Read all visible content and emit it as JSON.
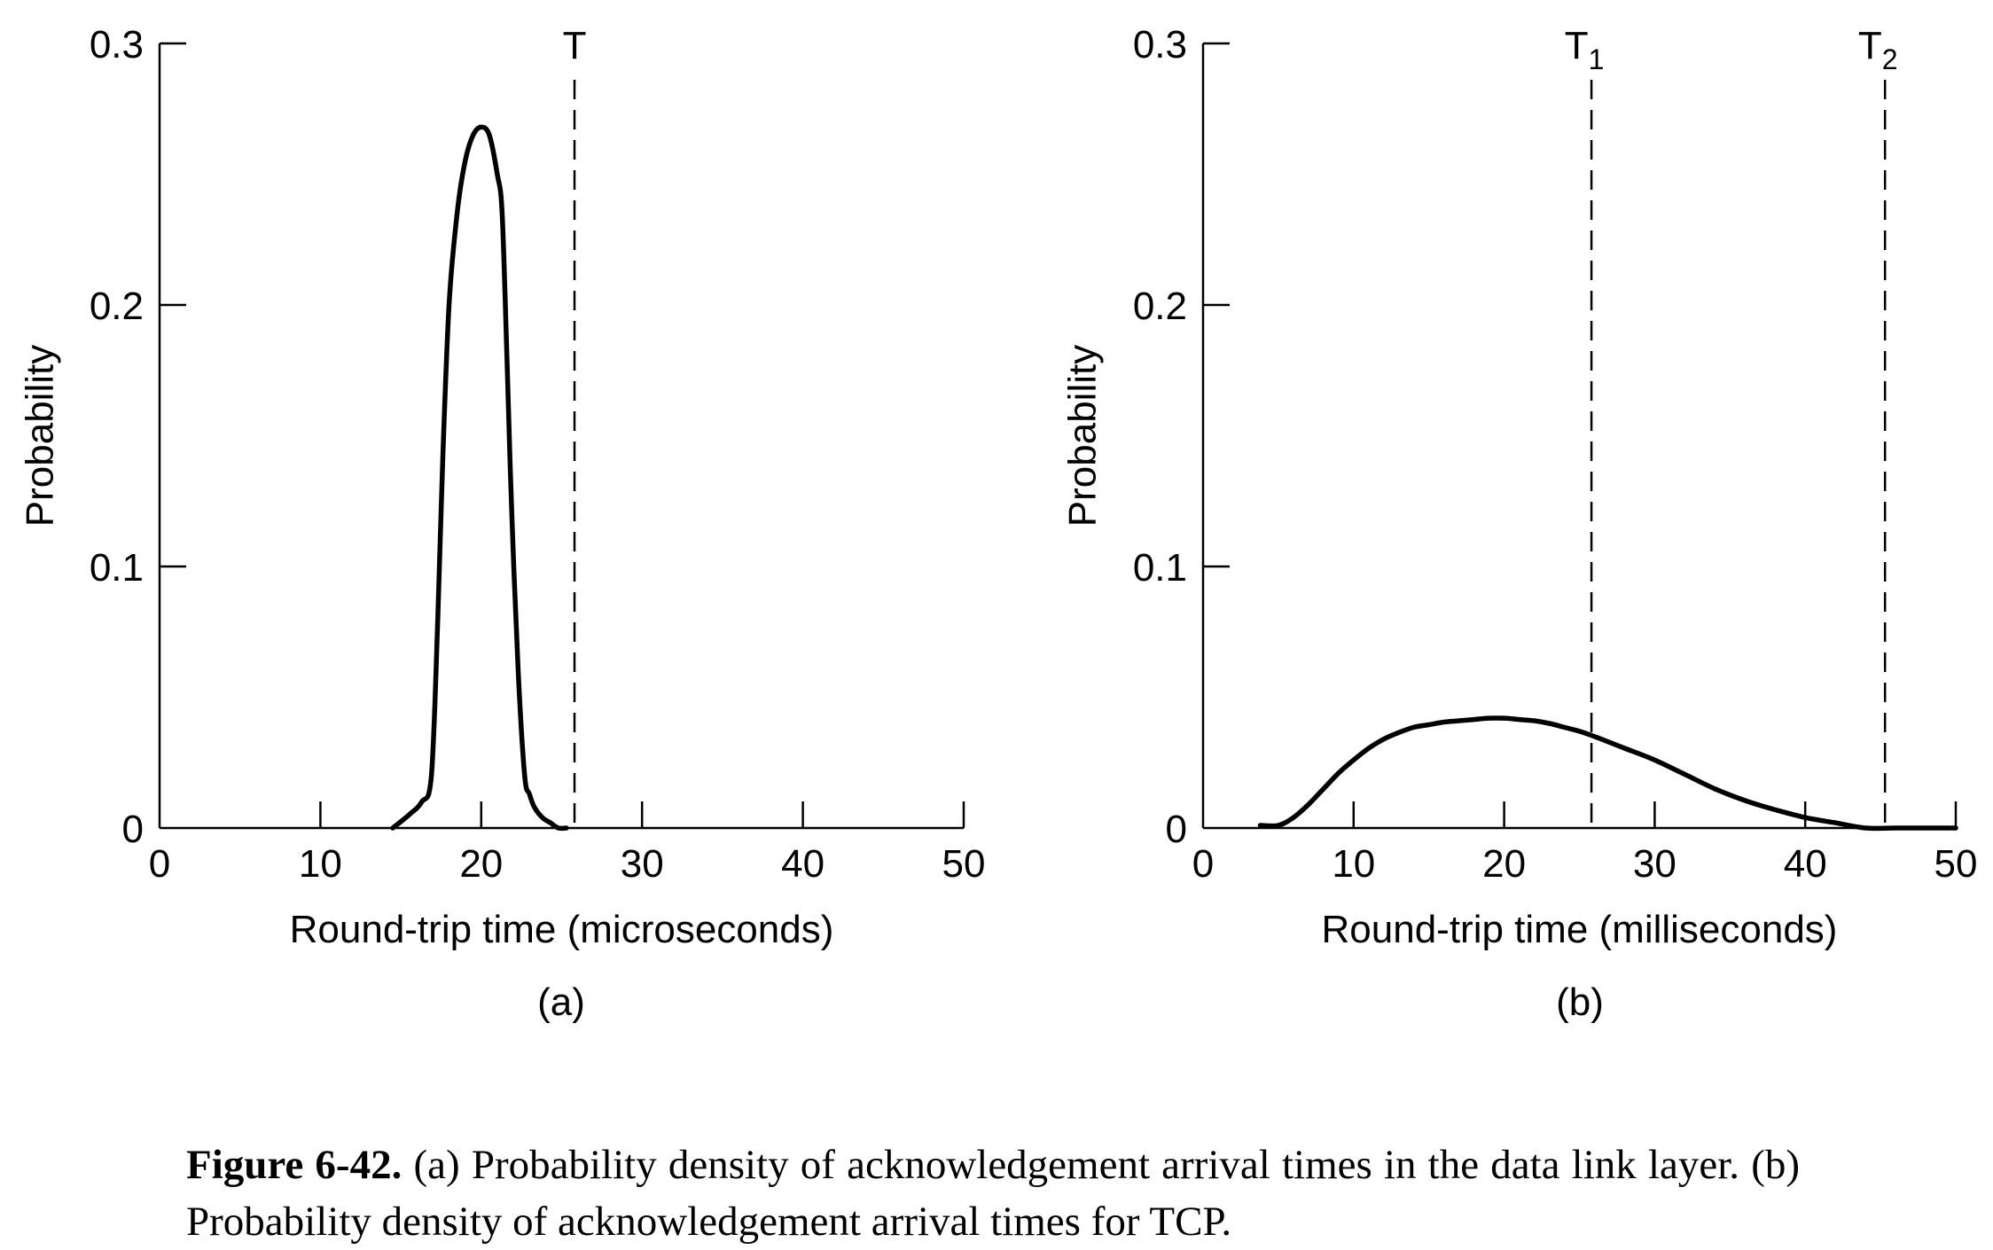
{
  "chart_data": [
    {
      "type": "line",
      "panel_label": "(a)",
      "xlabel": "Round-trip time (microseconds)",
      "ylabel": "Probability",
      "xlim": [
        0,
        50
      ],
      "ylim": [
        0,
        0.3
      ],
      "xticks": [
        0,
        10,
        20,
        30,
        40,
        50
      ],
      "yticks": [
        0,
        0.1,
        0.2,
        0.3
      ],
      "xtick_labels": [
        "0",
        "10",
        "20",
        "30",
        "40",
        "50"
      ],
      "ytick_labels": [
        "0",
        "0.1",
        "0.2",
        "0.3"
      ],
      "grid": false,
      "series": [
        {
          "x": [
            14.5,
            15.5,
            16.3,
            16.9,
            17.3,
            17.6,
            18.0,
            18.5,
            19.0,
            19.5,
            20.0,
            20.5,
            21.0,
            21.3,
            21.6,
            21.9,
            22.3,
            22.7,
            23.0,
            23.3,
            23.8,
            24.3,
            24.8,
            25.3
          ],
          "y": [
            0.0,
            0.005,
            0.01,
            0.02,
            0.08,
            0.14,
            0.2,
            0.235,
            0.255,
            0.265,
            0.268,
            0.265,
            0.25,
            0.235,
            0.18,
            0.12,
            0.06,
            0.02,
            0.013,
            0.008,
            0.004,
            0.002,
            0.0,
            0.0
          ]
        }
      ],
      "vlines": [
        {
          "x": 25.8,
          "label": "T"
        }
      ]
    },
    {
      "type": "line",
      "panel_label": "(b)",
      "xlabel": "Round-trip time (milliseconds)",
      "ylabel": "Probability",
      "xlim": [
        0,
        50
      ],
      "ylim": [
        0,
        0.3
      ],
      "xticks": [
        0,
        10,
        20,
        30,
        40,
        50
      ],
      "yticks": [
        0,
        0.1,
        0.2,
        0.3
      ],
      "xtick_labels": [
        "0",
        "10",
        "20",
        "30",
        "40",
        "50"
      ],
      "ytick_labels": [
        "0",
        "0.1",
        "0.2",
        "0.3"
      ],
      "grid": false,
      "series": [
        {
          "x": [
            3.8,
            5.0,
            6.0,
            7.0,
            8.0,
            9.0,
            10.0,
            11.0,
            12.0,
            13.0,
            14.0,
            15.0,
            16.0,
            17.0,
            18.0,
            19.0,
            20.0,
            21.0,
            22.0,
            23.0,
            24.0,
            25.0,
            26.0,
            28.0,
            30.0,
            32.0,
            34.0,
            36.0,
            38.0,
            40.0,
            42.0,
            44.0,
            46.0,
            48.0,
            50.0
          ],
          "y": [
            0.001,
            0.001,
            0.004,
            0.009,
            0.015,
            0.021,
            0.026,
            0.0305,
            0.034,
            0.0365,
            0.0385,
            0.0395,
            0.0405,
            0.041,
            0.0415,
            0.042,
            0.042,
            0.0415,
            0.041,
            0.04,
            0.0385,
            0.037,
            0.035,
            0.0305,
            0.026,
            0.0205,
            0.015,
            0.0105,
            0.007,
            0.004,
            0.002,
            0.0,
            0.0,
            0.0,
            0.0
          ]
        }
      ],
      "vlines": [
        {
          "x": 25.8,
          "label": "T",
          "label_sub": "1"
        },
        {
          "x": 45.3,
          "label": "T",
          "label_sub": "2"
        }
      ]
    }
  ],
  "caption": {
    "label": "Figure 6-42.",
    "text": " (a) Probability density of acknowledgement arrival times in the data link layer. (b) Probability density of acknowledgement arrival times for TCP."
  }
}
